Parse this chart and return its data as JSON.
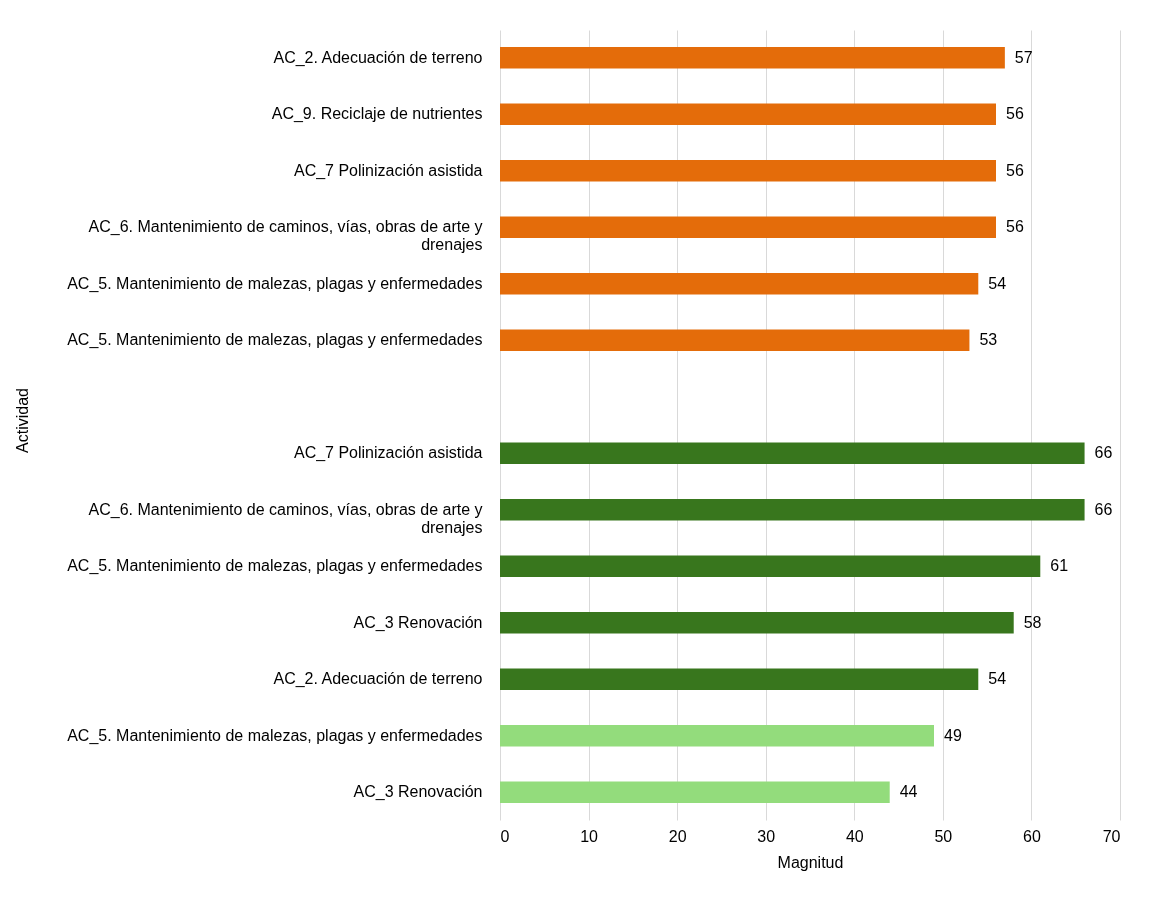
{
  "chart_data": {
    "type": "bar",
    "orientation": "horizontal",
    "xlabel": "Magnitud",
    "ylabel": "Actividad",
    "categories": [
      "AC_2. Adecuación de terreno",
      "AC_9. Reciclaje de nutrientes",
      "AC_7 Polinización asistida",
      "AC_6. Mantenimiento de caminos, vías, obras de arte y drenajes",
      "AC_5. Mantenimiento de malezas, plagas y enfermedades",
      "AC_5. Mantenimiento de malezas, plagas y enfermedades",
      null,
      "AC_7 Polinización asistida",
      "AC_6. Mantenimiento de caminos, vías, obras de arte y drenajes",
      "AC_5. Mantenimiento de malezas, plagas y enfermedades",
      "AC_3 Renovación",
      "AC_2. Adecuación de terreno",
      "AC_5. Mantenimiento de malezas, plagas y enfermedades",
      "AC_3 Renovación"
    ],
    "values": [
      57,
      56,
      56,
      56,
      54,
      53,
      null,
      66,
      66,
      61,
      58,
      54,
      49,
      44
    ],
    "colors": [
      "#e46c0a",
      "#e46c0a",
      "#e46c0a",
      "#e46c0a",
      "#e46c0a",
      "#e46c0a",
      null,
      "#38761d",
      "#38761d",
      "#38761d",
      "#38761d",
      "#38761d",
      "#93dc7c",
      "#93dc7c"
    ],
    "xlim": [
      0,
      70
    ],
    "xticks": [
      0,
      10,
      20,
      30,
      40,
      50,
      60,
      70
    ],
    "grid": "x",
    "data_labels": true
  }
}
